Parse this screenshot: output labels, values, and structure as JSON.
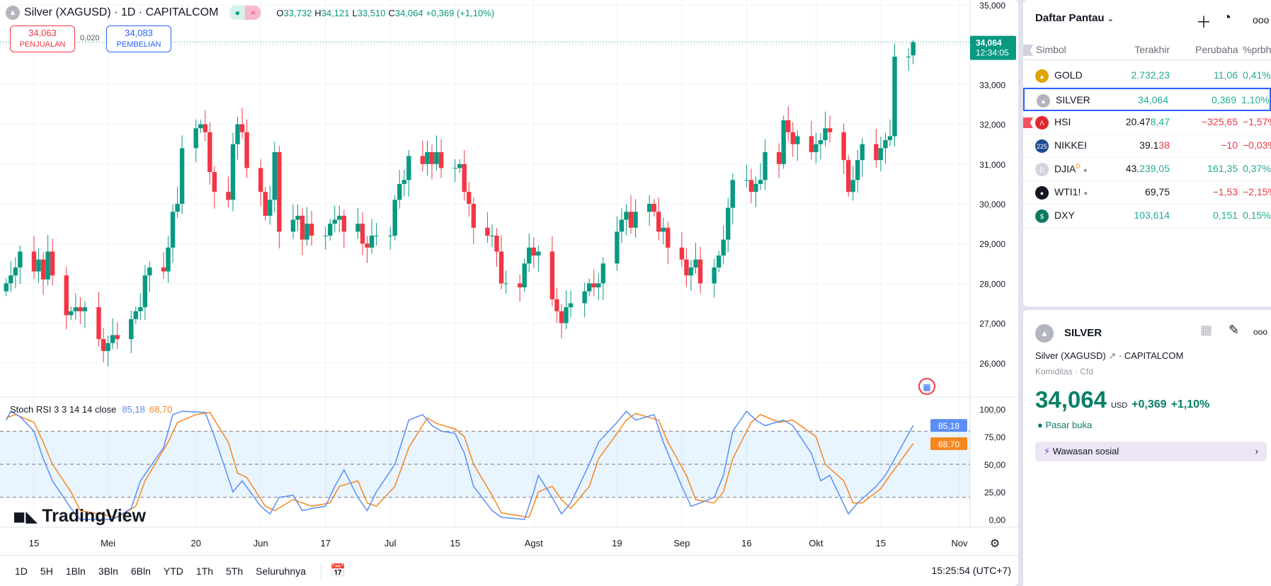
{
  "header": {
    "symbol_title": "Silver (XAGUSD) · 1D · CAPITALCOM",
    "o_label": "O",
    "o": "33,732",
    "h_label": "H",
    "h": "34,121",
    "l_label": "L",
    "l": "33,510",
    "c_label": "C",
    "c": "34,064",
    "change": "+0,369 (+1,10%)"
  },
  "trade": {
    "sell_price": "34,063",
    "sell_label": "PENJUALAN",
    "spread": "0,020",
    "buy_price": "34,083",
    "buy_label": "PEMBELIAN"
  },
  "price_axis": {
    "ticks": [
      "35,000",
      "33,000",
      "32,000",
      "31,000",
      "30,000",
      "29,000",
      "28,000",
      "27,000",
      "26,000"
    ],
    "tick_values": [
      35,
      33,
      32,
      31,
      30,
      29,
      28,
      27,
      26
    ],
    "last_price": "34,064",
    "countdown": "12:34:05"
  },
  "time_axis": [
    {
      "label": "15",
      "date": "04-15"
    },
    {
      "label": "Mei",
      "date": "05-01"
    },
    {
      "label": "20",
      "date": "05-20"
    },
    {
      "label": "Jun",
      "date": "06-03"
    },
    {
      "label": "17",
      "date": "06-17"
    },
    {
      "label": "Jul",
      "date": "07-01"
    },
    {
      "label": "15",
      "date": "07-15"
    },
    {
      "label": "Agst",
      "date": "08-01"
    },
    {
      "label": "19",
      "date": "08-19"
    },
    {
      "label": "Sep",
      "date": "09-02"
    },
    {
      "label": "16",
      "date": "09-16"
    },
    {
      "label": "Okt",
      "date": "10-01"
    },
    {
      "label": "15",
      "date": "10-15"
    },
    {
      "label": "Nov",
      "date": "11-01"
    }
  ],
  "chart_data": {
    "type": "candlestick",
    "start_date": "04-09",
    "last_candle": {
      "open": 33.732,
      "high": 34.121,
      "low": 33.51,
      "close": 34.064
    },
    "closes": [
      28.0,
      28.2,
      28.4,
      28.8,
      28.3,
      28.6,
      28.1,
      28.8,
      28.2,
      27.2,
      27.3,
      27.4,
      27.3,
      27.4,
      26.6,
      26.3,
      26.5,
      26.7,
      26.6,
      27.1,
      27.3,
      27.4,
      28.2,
      28.4,
      28.3,
      28.9,
      29.8,
      30.0,
      31.4,
      31.9,
      32.0,
      31.8,
      30.8,
      30.3,
      30.1,
      31.5,
      32.0,
      31.8,
      30.9,
      30.3,
      29.7,
      30.1,
      31.3,
      29.3,
      29.6,
      29.7,
      29.1,
      29.5,
      29.2,
      29.2,
      29.5,
      29.6,
      29.7,
      29.3,
      29.5,
      29.0,
      28.9,
      29.2,
      29.2,
      29.2,
      30.1,
      30.5,
      30.6,
      31.2,
      31.0,
      31.3,
      31.0,
      31.3,
      30.9,
      30.9,
      31.0,
      30.3,
      30.0,
      29.4,
      29.2,
      29.2,
      28.8,
      28.0,
      28.0,
      27.9,
      28.5,
      28.9,
      28.7,
      28.8,
      27.6,
      27.3,
      27.0,
      27.4,
      27.5,
      27.8,
      28.0,
      27.9,
      28.0,
      28.5,
      29.3,
      29.6,
      29.8,
      29.4,
      29.8,
      30.0,
      29.8,
      29.3,
      29.4,
      28.9,
      28.6,
      28.2,
      28.4,
      28.6,
      28.0,
      28.4,
      28.7,
      29.1,
      29.9,
      30.6,
      30.6,
      30.3,
      30.5,
      30.6,
      31.3,
      31.0,
      32.1,
      31.8,
      31.5,
      31.7,
      31.3,
      31.5,
      31.6,
      31.9,
      31.8,
      31.1,
      30.3,
      30.6,
      31.1,
      31.5,
      31.1,
      31.4,
      31.6,
      31.7,
      33.7,
      33.7,
      34.064
    ],
    "stoch": {
      "title": "Stoch RSI 3 3 14 14 close",
      "k_value": "85,18",
      "d_value": "68,70",
      "k_color": "#5b8ef5",
      "d_color": "#f7861e",
      "levels": [
        80,
        50,
        20
      ],
      "ticks": [
        "100,00",
        "75,00",
        "50,00",
        "25,00",
        "0,00"
      ],
      "tick_values": [
        100,
        75,
        50,
        25,
        0
      ],
      "k": [
        [
          "04-09",
          90
        ],
        [
          "04-10",
          98
        ],
        [
          "04-12",
          93
        ],
        [
          "04-15",
          80
        ],
        [
          "04-17",
          55
        ],
        [
          "04-19",
          35
        ],
        [
          "04-23",
          10
        ],
        [
          "04-25",
          0
        ],
        [
          "05-02",
          0
        ],
        [
          "05-06",
          10
        ],
        [
          "05-08",
          35
        ],
        [
          "05-13",
          65
        ],
        [
          "05-15",
          95
        ],
        [
          "05-17",
          98
        ],
        [
          "05-22",
          97
        ],
        [
          "05-24",
          75
        ],
        [
          "05-28",
          25
        ],
        [
          "05-30",
          35
        ],
        [
          "06-03",
          12
        ],
        [
          "06-05",
          5
        ],
        [
          "06-07",
          20
        ],
        [
          "06-10",
          22
        ],
        [
          "06-12",
          8
        ],
        [
          "06-14",
          10
        ],
        [
          "06-17",
          12
        ],
        [
          "06-19",
          30
        ],
        [
          "06-21",
          45
        ],
        [
          "06-24",
          20
        ],
        [
          "06-26",
          8
        ],
        [
          "06-28",
          25
        ],
        [
          "07-02",
          50
        ],
        [
          "07-05",
          90
        ],
        [
          "07-08",
          95
        ],
        [
          "07-10",
          85
        ],
        [
          "07-12",
          80
        ],
        [
          "07-15",
          78
        ],
        [
          "07-17",
          60
        ],
        [
          "07-19",
          30
        ],
        [
          "07-23",
          8
        ],
        [
          "07-25",
          2
        ],
        [
          "07-30",
          0
        ],
        [
          "08-01",
          25
        ],
        [
          "08-02",
          40
        ],
        [
          "08-05",
          20
        ],
        [
          "08-07",
          5
        ],
        [
          "08-09",
          15
        ],
        [
          "08-13",
          50
        ],
        [
          "08-15",
          70
        ],
        [
          "08-19",
          88
        ],
        [
          "08-21",
          98
        ],
        [
          "08-23",
          90
        ],
        [
          "08-27",
          95
        ],
        [
          "08-29",
          70
        ],
        [
          "09-02",
          30
        ],
        [
          "09-04",
          12
        ],
        [
          "09-06",
          15
        ],
        [
          "09-09",
          20
        ],
        [
          "09-11",
          40
        ],
        [
          "09-13",
          80
        ],
        [
          "09-16",
          98
        ],
        [
          "09-18",
          90
        ],
        [
          "09-20",
          85
        ],
        [
          "09-24",
          90
        ],
        [
          "09-26",
          85
        ],
        [
          "09-30",
          60
        ],
        [
          "10-02",
          35
        ],
        [
          "10-04",
          40
        ],
        [
          "10-08",
          5
        ],
        [
          "10-10",
          15
        ],
        [
          "10-14",
          30
        ],
        [
          "10-16",
          40
        ],
        [
          "10-18",
          55
        ],
        [
          "10-22",
          85.18
        ]
      ],
      "d": [
        [
          "04-09",
          92
        ],
        [
          "04-11",
          95
        ],
        [
          "04-15",
          88
        ],
        [
          "04-17",
          70
        ],
        [
          "04-19",
          50
        ],
        [
          "04-23",
          25
        ],
        [
          "04-25",
          8
        ],
        [
          "05-03",
          2
        ],
        [
          "05-07",
          12
        ],
        [
          "05-09",
          35
        ],
        [
          "05-14",
          70
        ],
        [
          "05-16",
          88
        ],
        [
          "05-20",
          95
        ],
        [
          "05-23",
          97
        ],
        [
          "05-27",
          70
        ],
        [
          "05-29",
          42
        ],
        [
          "05-31",
          38
        ],
        [
          "06-04",
          12
        ],
        [
          "06-06",
          8
        ],
        [
          "06-10",
          18
        ],
        [
          "06-12",
          15
        ],
        [
          "06-14",
          12
        ],
        [
          "06-18",
          15
        ],
        [
          "06-20",
          30
        ],
        [
          "06-24",
          35
        ],
        [
          "06-26",
          15
        ],
        [
          "06-28",
          12
        ],
        [
          "07-02",
          30
        ],
        [
          "07-05",
          65
        ],
        [
          "07-09",
          92
        ],
        [
          "07-11",
          87
        ],
        [
          "07-15",
          82
        ],
        [
          "07-17",
          75
        ],
        [
          "07-19",
          50
        ],
        [
          "07-23",
          22
        ],
        [
          "07-25",
          6
        ],
        [
          "07-31",
          2
        ],
        [
          "08-02",
          25
        ],
        [
          "08-05",
          30
        ],
        [
          "08-07",
          18
        ],
        [
          "08-09",
          10
        ],
        [
          "08-13",
          30
        ],
        [
          "08-15",
          55
        ],
        [
          "08-19",
          78
        ],
        [
          "08-21",
          90
        ],
        [
          "08-23",
          96
        ],
        [
          "08-28",
          90
        ],
        [
          "08-30",
          70
        ],
        [
          "09-03",
          40
        ],
        [
          "09-05",
          18
        ],
        [
          "09-09",
          15
        ],
        [
          "09-11",
          25
        ],
        [
          "09-13",
          55
        ],
        [
          "09-17",
          88
        ],
        [
          "09-19",
          95
        ],
        [
          "09-23",
          88
        ],
        [
          "09-26",
          90
        ],
        [
          "10-01",
          75
        ],
        [
          "10-03",
          50
        ],
        [
          "10-07",
          35
        ],
        [
          "10-09",
          15
        ],
        [
          "10-11",
          15
        ],
        [
          "10-15",
          28
        ],
        [
          "10-17",
          40
        ],
        [
          "10-22",
          68.7
        ]
      ]
    }
  },
  "tv_logo": "TradingView",
  "toolbar": {
    "timeframes": [
      "1D",
      "5H",
      "1Bln",
      "3Bln",
      "6Bln",
      "YTD",
      "1Th",
      "5Th",
      "Seluruhnya"
    ],
    "clock": "15:25:54 (UTC+7)"
  },
  "watchlist": {
    "title": "Daftar Pantau",
    "columns": [
      "Simbol",
      "Terakhir",
      "Perubaha",
      "%prbh"
    ],
    "rows": [
      {
        "symbol": "GOLD",
        "last_a": "",
        "last_b": "2.732,23",
        "last_b_color": "g",
        "change": "11,06",
        "pct": "0,41%",
        "dir": "g",
        "icon": "gold-icon",
        "icon_color": "#e0a400",
        "icon_glyph": "▲"
      },
      {
        "symbol": "SILVER",
        "last_a": "",
        "last_b": "34,064",
        "last_b_color": "g",
        "change": "0,369",
        "pct": "1,10%",
        "dir": "g",
        "icon": "silver-icon",
        "icon_color": "#b2b5be",
        "icon_glyph": "▲"
      },
      {
        "symbol": "HSI",
        "last_a": "20.47",
        "last_b": "8,47",
        "last_b_color": "g",
        "change": "−325,65",
        "pct": "−1,57%",
        "dir": "r",
        "icon": "hsi-icon",
        "icon_color": "#e0262c",
        "icon_glyph": "Λ"
      },
      {
        "symbol": "NIKKEI",
        "last_a": "39.1",
        "last_b": "38",
        "last_b_color": "r",
        "change": "−10",
        "pct": "−0,03%",
        "dir": "r",
        "icon": "nikkei-icon",
        "icon_color": "#1e4b8f",
        "icon_glyph": "225"
      },
      {
        "symbol": "DJIA",
        "last_a": "43.",
        "last_b": "239,05",
        "last_b_color": "g",
        "change": "161,35",
        "pct": "0,37%",
        "dir": "g",
        "icon": "djia-icon",
        "icon_color": "#d1d4dc",
        "icon_glyph": "D",
        "badge": "D"
      },
      {
        "symbol": "WTI1!",
        "last_a": "69,75",
        "last_b": "",
        "last_b_color": "g",
        "change": "−1,53",
        "pct": "−2,15%",
        "dir": "r",
        "icon": "oil-drop-icon",
        "icon_color": "#131722",
        "icon_glyph": "●"
      },
      {
        "symbol": "DXY",
        "last_a": "",
        "last_b": "103,614",
        "last_b_color": "g",
        "change": "0,151",
        "pct": "0,15%",
        "dir": "g",
        "icon": "dollar-icon",
        "icon_color": "#0d7a5f",
        "icon_glyph": "$"
      }
    ]
  },
  "details": {
    "symbol": "SILVER",
    "name": "Silver (XAGUSD)",
    "exchange": "CAPITALCOM",
    "category": "Komiditas",
    "type": "Cfd",
    "price": "34,064",
    "currency": "USD",
    "change": "+0,369",
    "change_pct": "+1,10%",
    "market_status": "Pasar buka",
    "social": "Wawasan sosial"
  },
  "colors": {
    "up": "#089981",
    "down": "#f23645",
    "accent": "#2962ff"
  }
}
